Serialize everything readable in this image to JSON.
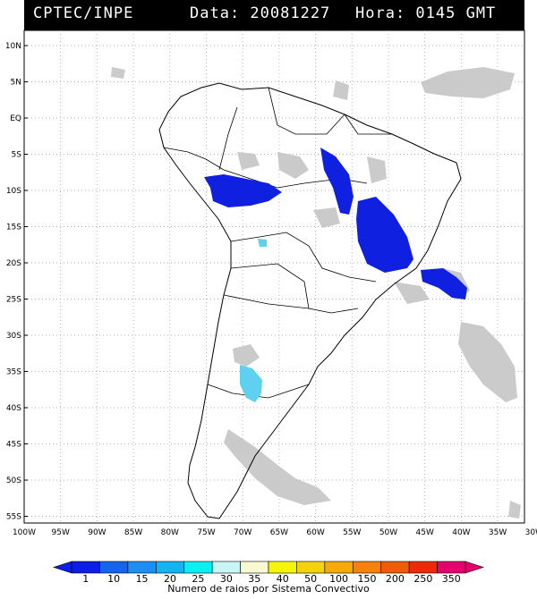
{
  "header": {
    "agency": "CPTEC/INPE",
    "data_text": "Data: 20081227",
    "hora_text": "Hora: 0145 GMT"
  },
  "map": {
    "lat_labels": [
      "10N",
      "5N",
      "EQ",
      "5S",
      "10S",
      "15S",
      "20S",
      "25S",
      "30S",
      "35S",
      "40S",
      "45S",
      "50S",
      "55S"
    ],
    "lon_labels": [
      "100W",
      "95W",
      "90W",
      "85W",
      "80W",
      "75W",
      "70W",
      "65W",
      "60W",
      "55W",
      "50W",
      "45W",
      "40W",
      "35W",
      "30W"
    ],
    "grid": true
  },
  "colorbar": {
    "values": [
      "1",
      "10",
      "15",
      "20",
      "25",
      "30",
      "35",
      "40",
      "50",
      "100",
      "150",
      "200",
      "250",
      "350"
    ],
    "colors": [
      "#0a1ee8",
      "#1464f0",
      "#1e8ef5",
      "#14b4f0",
      "#0af0f0",
      "#c8f5f5",
      "#fafad2",
      "#f5f50a",
      "#f5d20a",
      "#f5aa0a",
      "#f5820a",
      "#f05a0a",
      "#f0280a",
      "#e6006e"
    ],
    "label": "Numero de raios por Sistema Convectivo"
  },
  "legend_colors": {
    "storm_dark_blue": "#1020e0",
    "storm_cyan": "#60d0f0",
    "cloud_gray": "#c8c8c8"
  }
}
